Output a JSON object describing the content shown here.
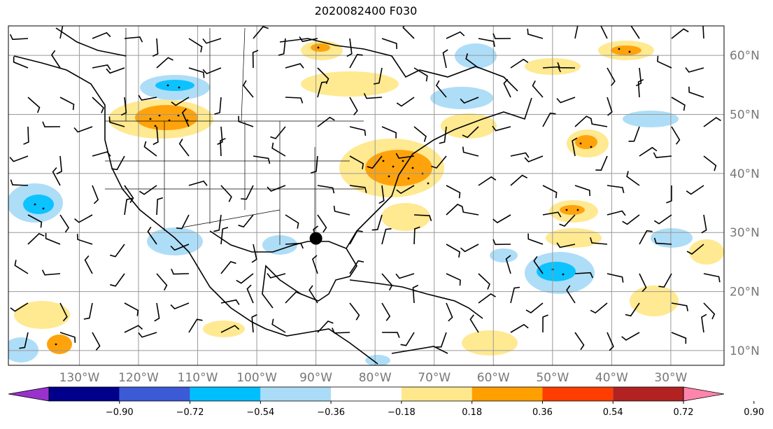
{
  "title": "2020082400 F030",
  "map": {
    "projection": "PlateCarree",
    "lon_range": [
      -142,
      -21
    ],
    "lat_range": [
      7.5,
      65
    ],
    "lon_ticks": [
      {
        "value": -130,
        "label": "130°W"
      },
      {
        "value": -120,
        "label": "120°W"
      },
      {
        "value": -110,
        "label": "110°W"
      },
      {
        "value": -100,
        "label": "100°W"
      },
      {
        "value": -90,
        "label": "90°W"
      },
      {
        "value": -80,
        "label": "80°W"
      },
      {
        "value": -70,
        "label": "70°W"
      },
      {
        "value": -60,
        "label": "60°W"
      },
      {
        "value": -50,
        "label": "50°W"
      },
      {
        "value": -40,
        "label": "40°W"
      },
      {
        "value": -30,
        "label": "30°W"
      }
    ],
    "lat_ticks": [
      {
        "value": 60,
        "label": "60°N"
      },
      {
        "value": 50,
        "label": "50°N"
      },
      {
        "value": 40,
        "label": "40°N"
      },
      {
        "value": 30,
        "label": "30°N"
      },
      {
        "value": 20,
        "label": "20°N"
      },
      {
        "value": 10,
        "label": "10°N"
      }
    ],
    "gridlines": true,
    "marker": {
      "lon": -90,
      "lat": 29,
      "label": ""
    },
    "tick_color": "#777777"
  },
  "colorbar": {
    "colors": [
      "#9932cc",
      "#00008b",
      "#3b5bd6",
      "#00bfff",
      "#aadcf7",
      "#ffffff",
      "#ffe88c",
      "#ff9f00",
      "#ff3d00",
      "#b22222",
      "#ff85ad"
    ],
    "labels": [
      "−0.90",
      "−0.72",
      "−0.54",
      "−0.36",
      "−0.18",
      "0.18",
      "0.36",
      "0.54",
      "0.72",
      "0.90"
    ],
    "extend": "both"
  }
}
